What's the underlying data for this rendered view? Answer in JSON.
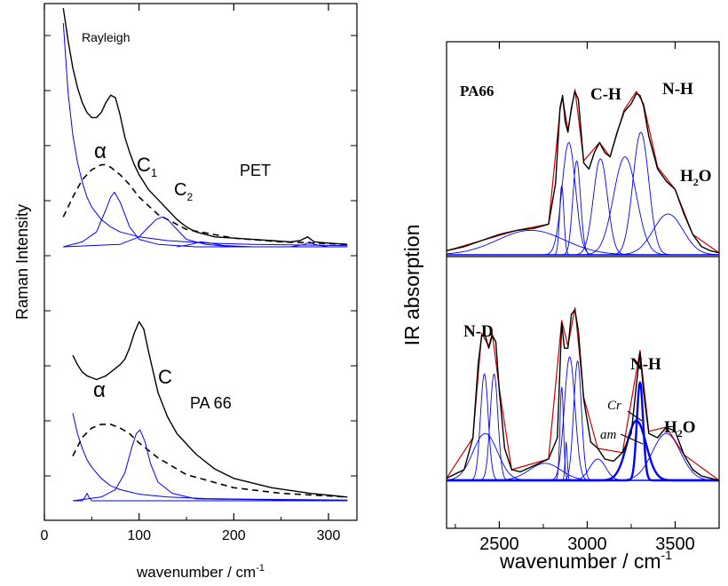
{
  "chart_data": [
    {
      "type": "line",
      "panel": "left",
      "xlabel": "wavenumber / cm",
      "xlabel_sup": "-1",
      "ylabel": "Raman Intensity",
      "xlim": [
        0,
        330
      ],
      "xticks": [
        0,
        100,
        200,
        300
      ],
      "xtick_labels": [
        "0",
        "100",
        "200",
        "300"
      ],
      "yticks_labeled": false,
      "subplots": [
        {
          "label": "PET",
          "annotations": {
            "rayleigh": "Rayleigh",
            "alpha": "α",
            "c1_main": "C",
            "c1_sub": "1",
            "c2_main": "C",
            "c2_sub": "2"
          },
          "measured": {
            "color": "#000000",
            "x": [
              20,
              25,
              30,
              35,
              40,
              45,
              50,
              55,
              60,
              65,
              70,
              75,
              80,
              85,
              90,
              95,
              100,
              110,
              120,
              130,
              140,
              150,
              160,
              170,
              180,
              200,
              220,
              240,
              260,
              270,
              278,
              285,
              300,
              320
            ],
            "y": [
              0.96,
              0.83,
              0.72,
              0.64,
              0.58,
              0.54,
              0.52,
              0.52,
              0.54,
              0.58,
              0.61,
              0.6,
              0.53,
              0.44,
              0.38,
              0.33,
              0.29,
              0.23,
              0.19,
              0.15,
              0.11,
              0.08,
              0.06,
              0.05,
              0.04,
              0.035,
              0.03,
              0.025,
              0.02,
              0.025,
              0.04,
              0.02,
              0.015,
              0.01
            ]
          },
          "rayleigh_component": {
            "color": "#0000ff",
            "x": [
              20,
              25,
              30,
              35,
              40,
              45,
              50,
              60,
              70,
              80,
              100,
              130,
              170,
              220,
              320
            ],
            "y": [
              0.9,
              0.62,
              0.45,
              0.34,
              0.26,
              0.2,
              0.16,
              0.11,
              0.08,
              0.06,
              0.04,
              0.025,
              0.015,
              0.01,
              0.005
            ]
          },
          "alpha_component": {
            "color": "#000000",
            "style": "dashed",
            "x": [
              20,
              30,
              40,
              50,
              60,
              65,
              70,
              80,
              90,
              100,
              120,
              150,
              200,
              250,
              320
            ],
            "y": [
              0.12,
              0.2,
              0.27,
              0.31,
              0.33,
              0.33,
              0.32,
              0.29,
              0.25,
              0.2,
              0.13,
              0.07,
              0.035,
              0.02,
              0.01
            ]
          },
          "c1_component": {
            "color": "#0000ff",
            "x": [
              20,
              40,
              55,
              65,
              70,
              74,
              80,
              90,
              100,
              120,
              160,
              320
            ],
            "y": [
              0.0,
              0.02,
              0.06,
              0.15,
              0.2,
              0.22,
              0.18,
              0.08,
              0.03,
              0.01,
              0.0,
              0.0
            ]
          },
          "c2_component": {
            "color": "#0000ff",
            "x": [
              20,
              80,
              100,
              110,
              118,
              124,
              130,
              140,
              150,
              170,
              200,
              320
            ],
            "y": [
              0.0,
              0.01,
              0.04,
              0.08,
              0.11,
              0.12,
              0.11,
              0.07,
              0.03,
              0.01,
              0.0,
              0.0
            ]
          },
          "small_component": {
            "color": "#0000ff",
            "x": [
              140,
              155,
              165,
              175,
              190,
              220,
              260,
              275,
              280,
              285,
              300,
              320
            ],
            "y": [
              0.0,
              0.01,
              0.02,
              0.015,
              0.005,
              0.0,
              0.0,
              0.01,
              0.02,
              0.01,
              0.0,
              0.0
            ]
          }
        },
        {
          "label": "PA 66",
          "annotations": {
            "alpha": "α",
            "c": "C"
          },
          "measured": {
            "color": "#000000",
            "x": [
              30,
              35,
              40,
              45,
              50,
              55,
              60,
              65,
              70,
              75,
              80,
              85,
              90,
              95,
              100,
              105,
              110,
              120,
              130,
              140,
              160,
              180,
              200,
              240,
              280,
              320
            ],
            "y": [
              0.78,
              0.73,
              0.69,
              0.67,
              0.66,
              0.65,
              0.66,
              0.67,
              0.69,
              0.71,
              0.73,
              0.76,
              0.82,
              0.9,
              0.96,
              0.92,
              0.8,
              0.58,
              0.45,
              0.36,
              0.25,
              0.17,
              0.12,
              0.07,
              0.04,
              0.02
            ]
          },
          "rayleigh_component": {
            "color": "#0000ff",
            "x": [
              30,
              35,
              40,
              45,
              50,
              60,
              70,
              80,
              100,
              130,
              170,
              220,
              320
            ],
            "y": [
              0.47,
              0.36,
              0.28,
              0.22,
              0.18,
              0.12,
              0.08,
              0.06,
              0.035,
              0.02,
              0.012,
              0.008,
              0.004
            ]
          },
          "alpha_component": {
            "color": "#000000",
            "style": "dashed",
            "x": [
              30,
              40,
              50,
              60,
              70,
              80,
              90,
              100,
              120,
              150,
              200,
              250,
              320
            ],
            "y": [
              0.24,
              0.34,
              0.39,
              0.41,
              0.41,
              0.39,
              0.36,
              0.31,
              0.23,
              0.14,
              0.07,
              0.04,
              0.02
            ]
          },
          "c_component": {
            "color": "#0000ff",
            "x": [
              30,
              60,
              75,
              85,
              92,
              97,
              101,
              106,
              112,
              120,
              135,
              160,
              320
            ],
            "y": [
              0.0,
              0.02,
              0.06,
              0.15,
              0.28,
              0.36,
              0.38,
              0.32,
              0.2,
              0.1,
              0.04,
              0.01,
              0.0
            ]
          },
          "spike_component": {
            "color": "#0000ff",
            "x": [
              30,
              40,
              43,
              45,
              47,
              50,
              320
            ],
            "y": [
              0.0,
              0.0,
              0.02,
              0.04,
              0.02,
              0.0,
              0.0
            ]
          }
        }
      ]
    },
    {
      "type": "line",
      "panel": "right",
      "xlabel": "wavenumber / cm",
      "xlabel_sup": "-1",
      "ylabel": "IR absorption",
      "xlim": [
        2200,
        3750
      ],
      "xticks": [
        2500,
        3000,
        3500
      ],
      "xtick_labels": [
        "2500",
        "3000",
        "3500"
      ],
      "yticks_labeled": false,
      "subplots": [
        {
          "label": "PA66",
          "annotations": {
            "ch": "C-H",
            "nh": "N-H",
            "h2o_main": "H",
            "h2o_sub": "2",
            "h2o_tail": "O"
          },
          "measured": {
            "color": "#000000",
            "x": [
              2200,
              2300,
              2400,
              2500,
              2600,
              2700,
              2780,
              2820,
              2845,
              2860,
              2875,
              2890,
              2910,
              2930,
              2950,
              2980,
              3010,
              3040,
              3070,
              3100,
              3130,
              3170,
              3210,
              3250,
              3280,
              3300,
              3320,
              3350,
              3400,
              3450,
              3500,
              3550,
              3600,
              3650,
              3700,
              3750
            ],
            "y": [
              0.02,
              0.04,
              0.07,
              0.1,
              0.12,
              0.13,
              0.15,
              0.35,
              0.72,
              0.78,
              0.65,
              0.6,
              0.72,
              0.8,
              0.76,
              0.45,
              0.42,
              0.5,
              0.55,
              0.5,
              0.48,
              0.6,
              0.7,
              0.74,
              0.79,
              0.78,
              0.73,
              0.58,
              0.42,
              0.36,
              0.32,
              0.2,
              0.1,
              0.04,
              0.02,
              0.01
            ]
          },
          "fit": {
            "color": "#cc0000",
            "x": [
              2200,
              2400,
              2600,
              2780,
              2845,
              2860,
              2890,
              2930,
              2980,
              3070,
              3130,
              3210,
              3280,
              3320,
              3400,
              3500,
              3600,
              3750
            ],
            "y": [
              0.02,
              0.07,
              0.12,
              0.15,
              0.71,
              0.77,
              0.61,
              0.81,
              0.46,
              0.55,
              0.48,
              0.71,
              0.8,
              0.74,
              0.43,
              0.32,
              0.1,
              0.01
            ]
          },
          "components": [
            {
              "color": "#0000ff",
              "center": 2680,
              "height": 0.12,
              "width": 190
            },
            {
              "color": "#0000ff",
              "center": 2855,
              "height": 0.34,
              "width": 12
            },
            {
              "color": "#0000ff",
              "center": 2895,
              "height": 0.55,
              "width": 38
            },
            {
              "color": "#0000ff",
              "center": 2940,
              "height": 0.46,
              "width": 22
            },
            {
              "color": "#0000ff",
              "center": 3075,
              "height": 0.47,
              "width": 40
            },
            {
              "color": "#0000ff",
              "center": 3215,
              "height": 0.48,
              "width": 65
            },
            {
              "color": "#0000ff",
              "center": 3305,
              "height": 0.6,
              "width": 45
            },
            {
              "color": "#0000ff",
              "center": 3460,
              "height": 0.2,
              "width": 85
            }
          ]
        },
        {
          "label": "",
          "annotations": {
            "nd": "N-D",
            "nh": "N-H",
            "cr": "Cr",
            "am": "am",
            "h2o_main": "H",
            "h2o_sub": "2",
            "h2o_tail": "O"
          },
          "measured": {
            "color": "#000000",
            "x": [
              2200,
              2300,
              2350,
              2380,
              2400,
              2420,
              2440,
              2460,
              2480,
              2500,
              2530,
              2570,
              2620,
              2700,
              2780,
              2830,
              2855,
              2870,
              2890,
              2910,
              2930,
              2950,
              2980,
              3020,
              3060,
              3100,
              3150,
              3200,
              3250,
              3280,
              3300,
              3320,
              3350,
              3400,
              3450,
              3500,
              3550,
              3600,
              3650,
              3700,
              3750
            ],
            "y": [
              0.01,
              0.05,
              0.2,
              0.55,
              0.68,
              0.68,
              0.62,
              0.68,
              0.65,
              0.42,
              0.15,
              0.05,
              0.04,
              0.07,
              0.1,
              0.2,
              0.74,
              0.62,
              0.62,
              0.78,
              0.8,
              0.7,
              0.38,
              0.18,
              0.15,
              0.1,
              0.09,
              0.13,
              0.22,
              0.45,
              0.6,
              0.42,
              0.22,
              0.2,
              0.25,
              0.23,
              0.12,
              0.05,
              0.02,
              0.01,
              0.0
            ]
          },
          "fit": {
            "color": "#cc0000",
            "x": [
              2200,
              2350,
              2400,
              2440,
              2460,
              2500,
              2570,
              2780,
              2855,
              2890,
              2930,
              2980,
              3060,
              3200,
              3300,
              3350,
              3450,
              3550,
              3750
            ],
            "y": [
              0.01,
              0.2,
              0.69,
              0.63,
              0.69,
              0.43,
              0.05,
              0.1,
              0.75,
              0.63,
              0.81,
              0.39,
              0.15,
              0.13,
              0.61,
              0.23,
              0.25,
              0.12,
              0.0
            ]
          },
          "components": [
            {
              "color": "#0000ff",
              "center": 2415,
              "height": 0.5,
              "width": 22
            },
            {
              "color": "#0000ff",
              "center": 2470,
              "height": 0.5,
              "width": 22
            },
            {
              "color": "#0000ff",
              "center": 2420,
              "height": 0.22,
              "width": 70
            },
            {
              "color": "#0000ff",
              "center": 2760,
              "height": 0.08,
              "width": 90
            },
            {
              "color": "#0000ff",
              "center": 2855,
              "height": 0.44,
              "width": 10
            },
            {
              "color": "#0000ff",
              "center": 2880,
              "height": 0.18,
              "width": 6
            },
            {
              "color": "#0000ff",
              "center": 2900,
              "height": 0.58,
              "width": 30
            },
            {
              "color": "#0000ff",
              "center": 2945,
              "height": 0.56,
              "width": 22
            },
            {
              "color": "#0000ff",
              "center": 3060,
              "height": 0.1,
              "width": 45
            },
            {
              "color": "#0000ff",
              "center": 3280,
              "height": 0.28,
              "width": 55,
              "bold": true
            },
            {
              "color": "#0000ff",
              "center": 3300,
              "height": 0.46,
              "width": 18,
              "bold": true
            },
            {
              "color": "#0000ff",
              "center": 3450,
              "height": 0.22,
              "width": 80
            }
          ]
        }
      ]
    }
  ]
}
